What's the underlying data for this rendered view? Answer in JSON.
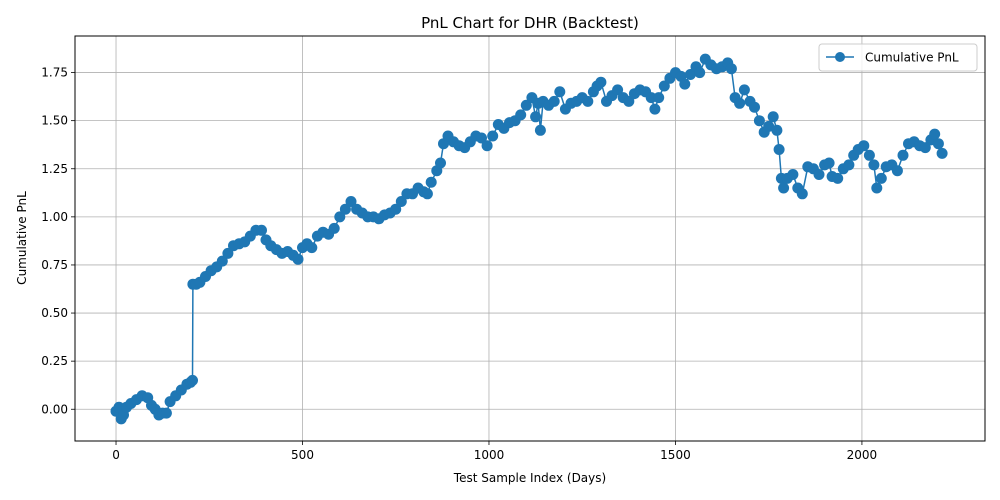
{
  "chart_data": {
    "type": "line",
    "title": "PnL Chart for DHR (Backtest)",
    "xlabel": "Test Sample Index (Days)",
    "ylabel": "Cumulative PnL",
    "xlim": [
      -110,
      2330
    ],
    "ylim": [
      -0.165,
      1.94
    ],
    "xticks": [
      0,
      500,
      1000,
      1500,
      2000
    ],
    "xtick_labels": [
      "0",
      "500",
      "1000",
      "1500",
      "2000"
    ],
    "yticks": [
      0.0,
      0.25,
      0.5,
      0.75,
      1.0,
      1.25,
      1.5,
      1.75
    ],
    "ytick_labels": [
      "0.00",
      "0.25",
      "0.50",
      "0.75",
      "1.00",
      "1.25",
      "1.50",
      "1.75"
    ],
    "grid": true,
    "legend_position": "top-right",
    "series": [
      {
        "name": "Cumulative PnL",
        "color": "#1f77b4",
        "marker": "circle",
        "points": [
          [
            0,
            -0.01
          ],
          [
            8,
            0.01
          ],
          [
            14,
            -0.05
          ],
          [
            20,
            -0.03
          ],
          [
            28,
            0.01
          ],
          [
            40,
            0.03
          ],
          [
            55,
            0.05
          ],
          [
            70,
            0.07
          ],
          [
            85,
            0.06
          ],
          [
            95,
            0.02
          ],
          [
            105,
            0.0
          ],
          [
            115,
            -0.03
          ],
          [
            125,
            -0.02
          ],
          [
            135,
            -0.02
          ],
          [
            145,
            0.04
          ],
          [
            160,
            0.07
          ],
          [
            175,
            0.1
          ],
          [
            190,
            0.13
          ],
          [
            200,
            0.14
          ],
          [
            205,
            0.15
          ],
          [
            206,
            0.65
          ],
          [
            215,
            0.65
          ],
          [
            225,
            0.66
          ],
          [
            240,
            0.69
          ],
          [
            255,
            0.72
          ],
          [
            270,
            0.74
          ],
          [
            285,
            0.77
          ],
          [
            300,
            0.81
          ],
          [
            315,
            0.85
          ],
          [
            330,
            0.86
          ],
          [
            345,
            0.87
          ],
          [
            360,
            0.9
          ],
          [
            375,
            0.93
          ],
          [
            390,
            0.93
          ],
          [
            402,
            0.88
          ],
          [
            415,
            0.85
          ],
          [
            430,
            0.83
          ],
          [
            445,
            0.81
          ],
          [
            460,
            0.82
          ],
          [
            475,
            0.8
          ],
          [
            488,
            0.78
          ],
          [
            500,
            0.84
          ],
          [
            512,
            0.86
          ],
          [
            525,
            0.84
          ],
          [
            540,
            0.9
          ],
          [
            555,
            0.92
          ],
          [
            570,
            0.91
          ],
          [
            585,
            0.94
          ],
          [
            600,
            1.0
          ],
          [
            615,
            1.04
          ],
          [
            630,
            1.08
          ],
          [
            645,
            1.04
          ],
          [
            660,
            1.02
          ],
          [
            675,
            1.0
          ],
          [
            690,
            1.0
          ],
          [
            705,
            0.99
          ],
          [
            720,
            1.01
          ],
          [
            735,
            1.02
          ],
          [
            750,
            1.04
          ],
          [
            765,
            1.08
          ],
          [
            780,
            1.12
          ],
          [
            795,
            1.12
          ],
          [
            810,
            1.15
          ],
          [
            825,
            1.13
          ],
          [
            835,
            1.12
          ],
          [
            845,
            1.18
          ],
          [
            860,
            1.24
          ],
          [
            870,
            1.28
          ],
          [
            878,
            1.38
          ],
          [
            890,
            1.42
          ],
          [
            905,
            1.39
          ],
          [
            920,
            1.37
          ],
          [
            935,
            1.36
          ],
          [
            950,
            1.39
          ],
          [
            965,
            1.42
          ],
          [
            980,
            1.41
          ],
          [
            995,
            1.37
          ],
          [
            1010,
            1.42
          ],
          [
            1025,
            1.48
          ],
          [
            1040,
            1.46
          ],
          [
            1055,
            1.49
          ],
          [
            1070,
            1.5
          ],
          [
            1085,
            1.53
          ],
          [
            1100,
            1.58
          ],
          [
            1115,
            1.62
          ],
          [
            1125,
            1.52
          ],
          [
            1132,
            1.59
          ],
          [
            1138,
            1.45
          ],
          [
            1145,
            1.6
          ],
          [
            1160,
            1.58
          ],
          [
            1175,
            1.6
          ],
          [
            1190,
            1.65
          ],
          [
            1205,
            1.56
          ],
          [
            1220,
            1.59
          ],
          [
            1235,
            1.6
          ],
          [
            1250,
            1.62
          ],
          [
            1265,
            1.6
          ],
          [
            1280,
            1.65
          ],
          [
            1290,
            1.68
          ],
          [
            1300,
            1.7
          ],
          [
            1315,
            1.6
          ],
          [
            1330,
            1.63
          ],
          [
            1345,
            1.66
          ],
          [
            1360,
            1.62
          ],
          [
            1375,
            1.6
          ],
          [
            1390,
            1.64
          ],
          [
            1405,
            1.66
          ],
          [
            1420,
            1.65
          ],
          [
            1435,
            1.62
          ],
          [
            1445,
            1.56
          ],
          [
            1455,
            1.62
          ],
          [
            1470,
            1.68
          ],
          [
            1485,
            1.72
          ],
          [
            1500,
            1.75
          ],
          [
            1515,
            1.73
          ],
          [
            1525,
            1.69
          ],
          [
            1540,
            1.74
          ],
          [
            1555,
            1.78
          ],
          [
            1565,
            1.75
          ],
          [
            1580,
            1.82
          ],
          [
            1595,
            1.79
          ],
          [
            1610,
            1.77
          ],
          [
            1625,
            1.78
          ],
          [
            1640,
            1.8
          ],
          [
            1650,
            1.77
          ],
          [
            1660,
            1.62
          ],
          [
            1672,
            1.59
          ],
          [
            1685,
            1.66
          ],
          [
            1700,
            1.6
          ],
          [
            1712,
            1.57
          ],
          [
            1725,
            1.5
          ],
          [
            1738,
            1.44
          ],
          [
            1750,
            1.47
          ],
          [
            1762,
            1.52
          ],
          [
            1772,
            1.45
          ],
          [
            1778,
            1.35
          ],
          [
            1784,
            1.2
          ],
          [
            1790,
            1.15
          ],
          [
            1800,
            1.2
          ],
          [
            1815,
            1.22
          ],
          [
            1828,
            1.15
          ],
          [
            1840,
            1.12
          ],
          [
            1855,
            1.26
          ],
          [
            1870,
            1.25
          ],
          [
            1885,
            1.22
          ],
          [
            1900,
            1.27
          ],
          [
            1912,
            1.28
          ],
          [
            1920,
            1.21
          ],
          [
            1935,
            1.2
          ],
          [
            1950,
            1.25
          ],
          [
            1965,
            1.27
          ],
          [
            1978,
            1.32
          ],
          [
            1990,
            1.35
          ],
          [
            2005,
            1.37
          ],
          [
            2020,
            1.32
          ],
          [
            2032,
            1.27
          ],
          [
            2040,
            1.15
          ],
          [
            2052,
            1.2
          ],
          [
            2065,
            1.26
          ],
          [
            2080,
            1.27
          ],
          [
            2095,
            1.24
          ],
          [
            2110,
            1.32
          ],
          [
            2125,
            1.38
          ],
          [
            2140,
            1.39
          ],
          [
            2155,
            1.37
          ],
          [
            2170,
            1.36
          ],
          [
            2185,
            1.4
          ],
          [
            2195,
            1.43
          ],
          [
            2205,
            1.38
          ],
          [
            2215,
            1.33
          ]
        ]
      }
    ]
  }
}
